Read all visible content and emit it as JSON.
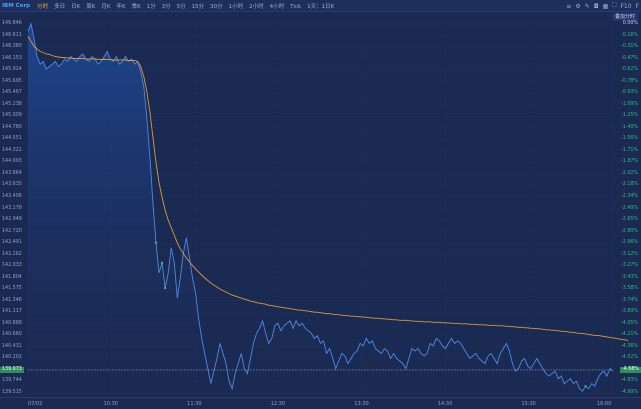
{
  "toolbar": {
    "symbol": "IBM Corp",
    "periods": [
      "分时",
      "多日",
      "日K",
      "周K",
      "月K",
      "年K",
      "季K",
      "1分",
      "3分",
      "5分",
      "15分",
      "30分",
      "1小时",
      "2小时",
      "4小时",
      "Tick"
    ],
    "active_period": "分时",
    "adjust": "1天：1日K",
    "right_icons": [
      "menu-icon",
      "settings-icon",
      "edit-icon",
      "camera-icon",
      "layout-icon",
      "fullscreen-icon"
    ],
    "right_labels": [
      "F10",
      "F"
    ]
  },
  "subbar": {
    "label": "叠加分时"
  },
  "chart_data": {
    "type": "line",
    "title": "",
    "price_ticks": [
      "146.846",
      "146.611",
      "146.380",
      "146.153",
      "145.924",
      "145.695",
      "145.467",
      "145.238",
      "145.009",
      "144.780",
      "144.551",
      "144.322",
      "144.093",
      "143.864",
      "143.635",
      "143.406",
      "143.178",
      "142.949",
      "142.720",
      "142.491",
      "142.262",
      "142.033",
      "141.804",
      "141.575",
      "141.346",
      "141.117",
      "140.888",
      "140.660",
      "140.431",
      "140.202",
      "139.973",
      "139.744",
      "139.515"
    ],
    "pct_ticks": [
      "0.00%",
      "-0.16%",
      "-0.31%",
      "-0.47%",
      "-0.62%",
      "-0.78%",
      "-0.93%",
      "-1.09%",
      "-1.25%",
      "-1.40%",
      "-1.56%",
      "-1.71%",
      "-1.87%",
      "-2.02%",
      "-2.18%",
      "-2.34%",
      "-2.49%",
      "-2.65%",
      "-2.80%",
      "-2.96%",
      "-3.12%",
      "-3.27%",
      "-3.43%",
      "-3.58%",
      "-3.74%",
      "-3.89%",
      "-4.05%",
      "-4.21%",
      "-4.36%",
      "-4.52%",
      "-4.67%",
      "-4.83%",
      "-4.99%"
    ],
    "time_ticks": [
      "07/02",
      "10:30",
      "11:30",
      "12:30",
      "13:30",
      "14:30",
      "15:30",
      "16:00"
    ],
    "current_price": "139.973",
    "current_pct": "-4.68%",
    "ylim": [
      139.515,
      146.846
    ],
    "series": [
      {
        "kind": "price",
        "color": "#4f88e0",
        "values": [
          146.7,
          146.85,
          146.55,
          146.2,
          146.05,
          146.1,
          145.95,
          146.0,
          146.05,
          146.1,
          146.0,
          146.05,
          146.15,
          146.1,
          146.2,
          146.15,
          146.1,
          146.2,
          146.25,
          146.15,
          146.1,
          146.2,
          146.15,
          146.05,
          146.1,
          146.2,
          146.3,
          146.15,
          146.1,
          146.2,
          146.05,
          146.1,
          146.2,
          146.1,
          146.15,
          146.05,
          146.1,
          145.9,
          145.6,
          145.0,
          144.2,
          143.3,
          142.5,
          141.9,
          142.1,
          141.6,
          141.9,
          142.4,
          142.1,
          141.4,
          141.8,
          142.3,
          142.6,
          142.2,
          141.8,
          141.5,
          141.0,
          140.6,
          140.3,
          140.0,
          139.7,
          139.95,
          140.2,
          140.5,
          140.3,
          140.1,
          139.75,
          139.6,
          139.9,
          140.1,
          140.3,
          140.0,
          139.9,
          140.2,
          140.5,
          140.7,
          140.8,
          140.95,
          140.7,
          140.5,
          140.6,
          140.85,
          140.9,
          140.75,
          140.85,
          140.9,
          140.95,
          140.8,
          140.95,
          140.85,
          140.9,
          140.8,
          140.75,
          140.7,
          140.6,
          140.65,
          140.5,
          140.55,
          140.3,
          140.4,
          140.2,
          140.0,
          140.15,
          140.3,
          140.25,
          140.1,
          140.2,
          140.3,
          140.35,
          140.5,
          140.45,
          140.6,
          140.5,
          140.55,
          140.4,
          140.35,
          140.3,
          140.4,
          140.35,
          140.2,
          140.3,
          140.2,
          140.15,
          140.1,
          140.0,
          140.2,
          140.4,
          140.35,
          140.4,
          140.3,
          140.25,
          140.3,
          140.5,
          140.45,
          140.6,
          140.55,
          140.45,
          140.4,
          140.5,
          140.6,
          140.5,
          140.55,
          140.5,
          140.4,
          140.3,
          140.2,
          140.25,
          140.3,
          140.2,
          140.15,
          140.1,
          140.25,
          140.3,
          140.2,
          140.1,
          140.3,
          140.4,
          140.5,
          140.35,
          140.1,
          139.95,
          140.0,
          140.15,
          140.2,
          140.05,
          140.0,
          140.1,
          140.2,
          140.1,
          140.0,
          139.9,
          139.85,
          139.9,
          139.95,
          139.8,
          139.85,
          139.7,
          139.75,
          139.8,
          139.7,
          139.75,
          139.6,
          139.55,
          139.65,
          139.6,
          139.7,
          139.65,
          139.8,
          139.9,
          139.95,
          139.85,
          140.0,
          139.95
        ]
      },
      {
        "kind": "average",
        "color": "#d99a36",
        "values": [
          146.6,
          146.5,
          146.4,
          146.35,
          146.3,
          146.28,
          146.25,
          146.24,
          146.22,
          146.2,
          146.19,
          146.18,
          146.18,
          146.17,
          146.17,
          146.16,
          146.16,
          146.16,
          146.16,
          146.15,
          146.15,
          146.15,
          146.15,
          146.14,
          146.14,
          146.14,
          146.14,
          146.14,
          146.13,
          146.13,
          146.13,
          146.13,
          146.13,
          146.12,
          146.12,
          146.12,
          146.1,
          146.0,
          145.8,
          145.5,
          145.1,
          144.6,
          144.1,
          143.7,
          143.4,
          143.15,
          142.95,
          142.8,
          142.65,
          142.5,
          142.38,
          142.28,
          142.2,
          142.12,
          142.05,
          141.98,
          141.92,
          141.86,
          141.8,
          141.75,
          141.7,
          141.66,
          141.62,
          141.58,
          141.55,
          141.52,
          141.49,
          141.46,
          141.44,
          141.42,
          141.4,
          141.38,
          141.36,
          141.34,
          141.33,
          141.31,
          141.3,
          141.29,
          141.28,
          141.26,
          141.25,
          141.24,
          141.23,
          141.22,
          141.21,
          141.2,
          141.19,
          141.18,
          141.17,
          141.16,
          141.16,
          141.15,
          141.14,
          141.13,
          141.12,
          141.12,
          141.11,
          141.1,
          141.09,
          141.09,
          141.08,
          141.07,
          141.07,
          141.06,
          141.05,
          141.05,
          141.04,
          141.04,
          141.03,
          141.03,
          141.02,
          141.02,
          141.01,
          141.01,
          141.0,
          141.0,
          140.99,
          140.99,
          140.98,
          140.98,
          140.97,
          140.97,
          140.96,
          140.96,
          140.96,
          140.95,
          140.95,
          140.94,
          140.94,
          140.94,
          140.93,
          140.93,
          140.93,
          140.92,
          140.92,
          140.92,
          140.91,
          140.91,
          140.91,
          140.9,
          140.9,
          140.9,
          140.89,
          140.89,
          140.89,
          140.88,
          140.88,
          140.88,
          140.87,
          140.87,
          140.87,
          140.86,
          140.86,
          140.86,
          140.85,
          140.85,
          140.85,
          140.84,
          140.84,
          140.83,
          140.83,
          140.82,
          140.82,
          140.81,
          140.81,
          140.8,
          140.8,
          140.79,
          140.79,
          140.78,
          140.77,
          140.77,
          140.76,
          140.76,
          140.75,
          140.74,
          140.74,
          140.73,
          140.72,
          140.72,
          140.71,
          140.7,
          140.7,
          140.69,
          140.68,
          140.67,
          140.66,
          140.66,
          140.65,
          140.64,
          140.63,
          140.62,
          140.61,
          140.6,
          140.59,
          140.58,
          140.57,
          140.56
        ]
      }
    ],
    "markers": [
      {
        "index": 42,
        "color": "#2bbf7e"
      },
      {
        "index": 45,
        "color": "#2bbf7e"
      },
      {
        "index": 44,
        "color": "#2bbf7e"
      },
      {
        "index": 183,
        "color": "#2bbf7e"
      }
    ]
  }
}
